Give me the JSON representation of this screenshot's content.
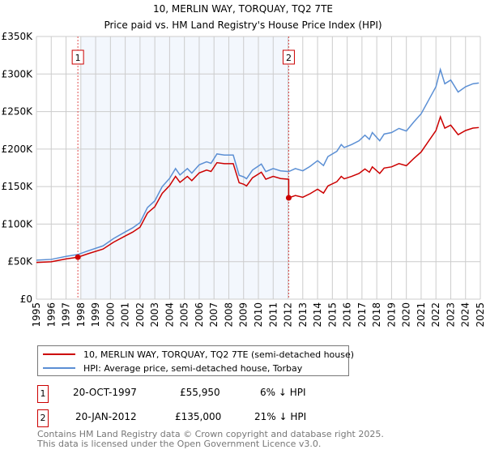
{
  "chart_data": {
    "type": "line",
    "title": "10, MERLIN WAY, TORQUAY, TQ2 7TE",
    "subtitle": "Price paid vs. HM Land Registry's House Price Index (HPI)",
    "xlim": [
      1995,
      2025
    ],
    "ylim": [
      0,
      350000
    ],
    "yticks": [
      "£0",
      "£50K",
      "£100K",
      "£150K",
      "£200K",
      "£250K",
      "£300K",
      "£350K"
    ],
    "xticks": [
      "1995",
      "1996",
      "1997",
      "1998",
      "1999",
      "2000",
      "2001",
      "2002",
      "2003",
      "2004",
      "2005",
      "2006",
      "2007",
      "2008",
      "2009",
      "2010",
      "2011",
      "2012",
      "2013",
      "2014",
      "2015",
      "2016",
      "2017",
      "2018",
      "2019",
      "2020",
      "2021",
      "2022",
      "2023",
      "2024",
      "2025"
    ],
    "grid": true,
    "shaded_range": [
      1998.0,
      2012.1
    ],
    "hpi": {
      "name": "HPI: Average price, semi-detached house, Torbay",
      "color": "#5b8fd4",
      "x": [
        1995,
        1996,
        1997,
        1997.8,
        1998.5,
        1999.5,
        2000.2,
        2001,
        2001.5,
        2002,
        2002.5,
        2003,
        2003.5,
        2004,
        2004.4,
        2004.7,
        2005.2,
        2005.5,
        2006,
        2006.5,
        2006.8,
        2007.2,
        2007.7,
        2008.3,
        2008.7,
        2009,
        2009.2,
        2009.6,
        2010.2,
        2010.5,
        2011,
        2011.5,
        2012.05,
        2012.5,
        2013,
        2013.5,
        2014,
        2014.4,
        2014.7,
        2015.3,
        2015.6,
        2015.8,
        2016.3,
        2016.8,
        2017.2,
        2017.5,
        2017.7,
        2018.2,
        2018.5,
        2019,
        2019.5,
        2020,
        2020.5,
        2021,
        2021.5,
        2022,
        2022.3,
        2022.6,
        2023,
        2023.5,
        2024,
        2024.5,
        2024.9
      ],
      "y": [
        52,
        53,
        57,
        59.5,
        64.5,
        71,
        80.6,
        89.6,
        95,
        102,
        122,
        131,
        150,
        161,
        174,
        165.5,
        174,
        168,
        179,
        183,
        181,
        193.5,
        192,
        192,
        165,
        163,
        160.5,
        172,
        180,
        170,
        174,
        171,
        170,
        174,
        171,
        177,
        184.5,
        178,
        190,
        197,
        206,
        202,
        206,
        211,
        218.5,
        213,
        222,
        211,
        220,
        222,
        227.5,
        224,
        236,
        247,
        265,
        283,
        306,
        287,
        292,
        276,
        283,
        287,
        288
      ]
    },
    "property": {
      "name": "10, MERLIN WAY, TORQUAY, TQ2 7TE (semi-detached house)",
      "color": "#cc0000",
      "ratio_before_sale2": 0.94,
      "ratio_after_sale2": 0.794
    },
    "sales": [
      {
        "n": "1",
        "x": 1997.8,
        "price": 55950
      },
      {
        "n": "2",
        "x": 2012.05,
        "price": 135000
      }
    ]
  },
  "legend": {
    "property": "10, MERLIN WAY, TORQUAY, TQ2 7TE (semi-detached house)",
    "hpi": "HPI: Average price, semi-detached house, Torbay"
  },
  "table": [
    {
      "n": "1",
      "date": "20-OCT-1997",
      "price": "£55,950",
      "diff": "6% ↓ HPI"
    },
    {
      "n": "2",
      "date": "20-JAN-2012",
      "price": "£135,000",
      "diff": "21% ↓ HPI"
    }
  ],
  "footer": [
    "Contains HM Land Registry data © Crown copyright and database right 2025.",
    "This data is licensed under the Open Government Licence v3.0."
  ]
}
